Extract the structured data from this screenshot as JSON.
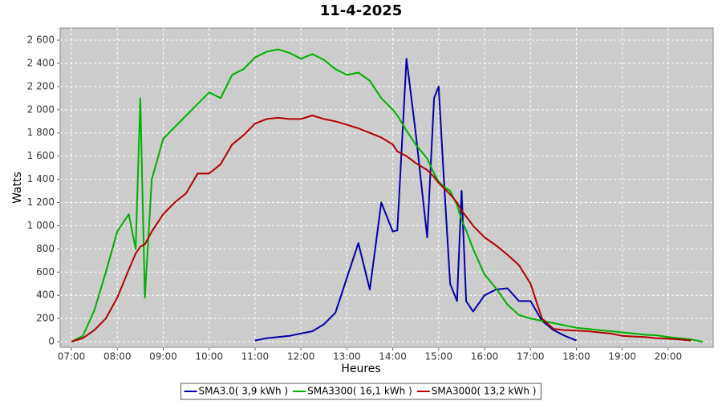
{
  "chart_data": {
    "type": "line",
    "title": "11-4-2025",
    "x_label": "Heures",
    "y_label": "Watts",
    "x": [
      7.0,
      7.25,
      7.5,
      7.75,
      8.0,
      8.25,
      8.4,
      8.5,
      8.6,
      8.75,
      9.0,
      9.25,
      9.5,
      9.75,
      10,
      10.25,
      10.5,
      10.75,
      11,
      11.25,
      11.5,
      11.75,
      12,
      12.25,
      12.5,
      12.75,
      13,
      13.25,
      13.5,
      13.75,
      14,
      14.1,
      14.3,
      14.5,
      14.75,
      14.9,
      15.0,
      15.1,
      15.25,
      15.4,
      15.5,
      15.6,
      15.75,
      16,
      16.25,
      16.5,
      16.75,
      17,
      17.25,
      17.5,
      17.75,
      18,
      18.25,
      18.5,
      18.75,
      19,
      19.25,
      19.5,
      19.75,
      20,
      20.25,
      20.5,
      20.75
    ],
    "series": [
      {
        "name": "SMA3.0( 3,9 kWh )",
        "color": "#0000aa",
        "values": [
          null,
          null,
          null,
          null,
          null,
          null,
          null,
          null,
          null,
          null,
          null,
          null,
          null,
          null,
          null,
          null,
          null,
          null,
          10,
          30,
          40,
          50,
          70,
          90,
          150,
          250,
          550,
          850,
          450,
          1200,
          950,
          960,
          2440,
          1800,
          900,
          2100,
          2200,
          1500,
          500,
          350,
          1300,
          350,
          260,
          400,
          450,
          460,
          350,
          350,
          180,
          100,
          50,
          10,
          null,
          null,
          null,
          null,
          null,
          null,
          null,
          null,
          null,
          null,
          null
        ]
      },
      {
        "name": "SMA3300( 16,1 kWh )",
        "color": "#00b000",
        "values": [
          0,
          50,
          270,
          600,
          950,
          1100,
          800,
          2100,
          380,
          1400,
          1750,
          1850,
          1950,
          2050,
          2150,
          2100,
          2300,
          2350,
          2450,
          2500,
          2520,
          2490,
          2440,
          2480,
          2430,
          2350,
          2300,
          2320,
          2250,
          2100,
          2000,
          1950,
          1820,
          1700,
          1580,
          1450,
          1380,
          1340,
          1300,
          1180,
          1050,
          960,
          800,
          580,
          460,
          320,
          230,
          200,
          180,
          160,
          140,
          120,
          110,
          100,
          90,
          80,
          70,
          60,
          55,
          40,
          30,
          20,
          0
        ]
      },
      {
        "name": "SMA3000( 13,2 kWh )",
        "color": "#b00000",
        "values": [
          0,
          30,
          100,
          200,
          380,
          620,
          760,
          820,
          840,
          950,
          1100,
          1200,
          1280,
          1450,
          1450,
          1530,
          1700,
          1780,
          1880,
          1920,
          1930,
          1920,
          1920,
          1950,
          1920,
          1900,
          1870,
          1840,
          1800,
          1760,
          1700,
          1640,
          1600,
          1540,
          1480,
          1420,
          1370,
          1330,
          1270,
          1200,
          1130,
          1080,
          1000,
          900,
          830,
          750,
          660,
          500,
          200,
          110,
          100,
          95,
          90,
          80,
          70,
          50,
          45,
          40,
          30,
          25,
          20,
          10,
          null
        ]
      }
    ],
    "xlim": [
      6.755,
      20.98
    ],
    "xticks": [
      {
        "value": 7,
        "label": "07:00"
      },
      {
        "value": 8,
        "label": "08:00"
      },
      {
        "value": 9,
        "label": "09:00"
      },
      {
        "value": 10,
        "label": "10:00"
      },
      {
        "value": 11,
        "label": "11:00"
      },
      {
        "value": 12,
        "label": "12:00"
      },
      {
        "value": 13,
        "label": "13:00"
      },
      {
        "value": 14,
        "label": "14:00"
      },
      {
        "value": 15,
        "label": "15:00"
      },
      {
        "value": 16,
        "label": "16:00"
      },
      {
        "value": 17,
        "label": "17:00"
      },
      {
        "value": 18,
        "label": "18:00"
      },
      {
        "value": 19,
        "label": "19:00"
      },
      {
        "value": 20,
        "label": "20:00"
      }
    ],
    "ylim": [
      -48,
      2704
    ],
    "yticks": [
      0,
      200,
      400,
      600,
      800,
      {
        "value": 1000,
        "label": "1 000"
      },
      {
        "value": 1200,
        "label": "1 200"
      },
      {
        "value": 1400,
        "label": "1 400"
      },
      {
        "value": 1600,
        "label": "1 600"
      },
      {
        "value": 1800,
        "label": "1 800"
      },
      {
        "value": 2000,
        "label": "2 000"
      },
      {
        "value": 2200,
        "label": "2 200"
      },
      {
        "value": 2400,
        "label": "2 400"
      },
      {
        "value": 2600,
        "label": "2 600"
      }
    ],
    "grid": true,
    "legend": "bottom"
  }
}
